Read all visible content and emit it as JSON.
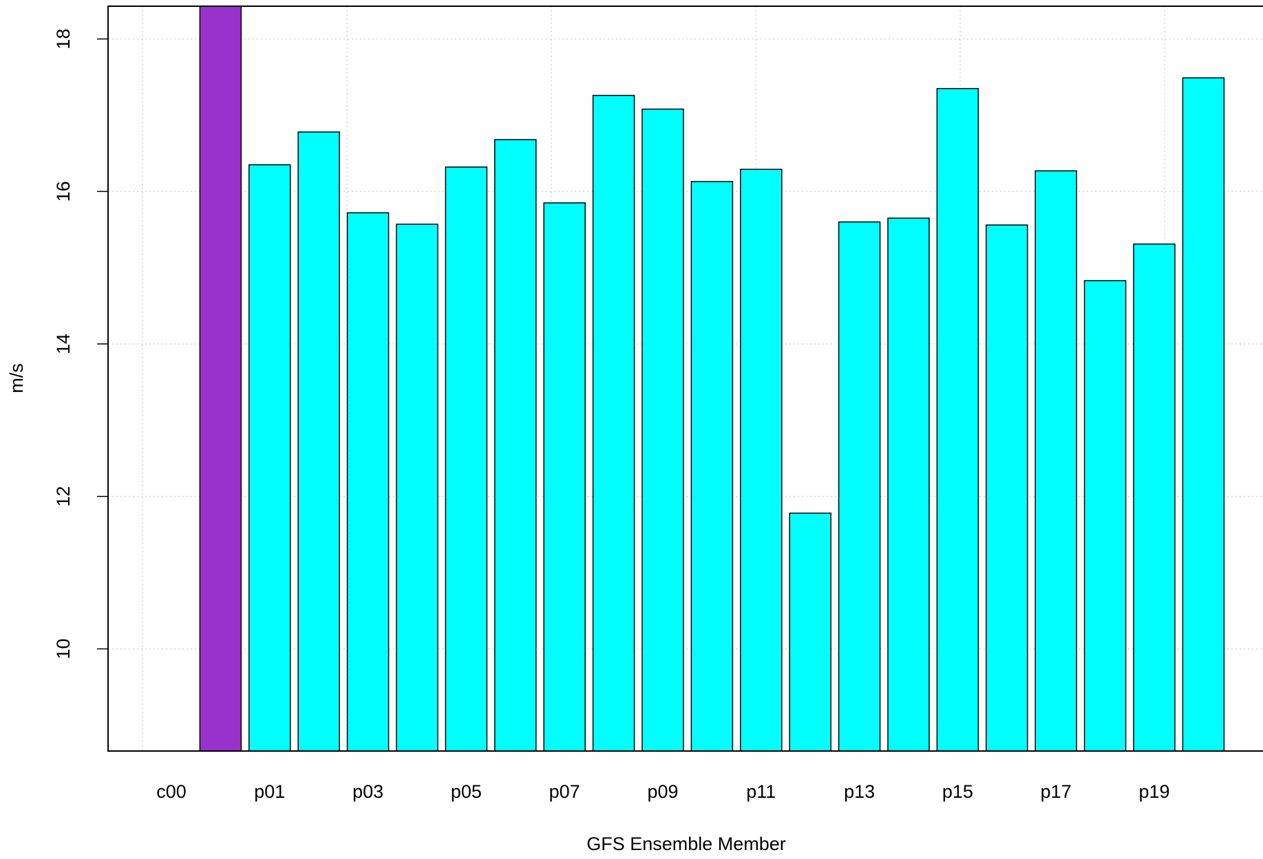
{
  "chart_data": {
    "type": "bar",
    "x_label": "GFS Ensemble Member",
    "y_label": "m/s",
    "categories": [
      "c00",
      null,
      "p01",
      null,
      "p03",
      null,
      "p05",
      null,
      "p07",
      null,
      "p09",
      null,
      "p11",
      null,
      "p13",
      null,
      "p15",
      null,
      "p17",
      null,
      "p19",
      null
    ],
    "values": [
      null,
      19,
      16.35,
      16.78,
      15.72,
      15.57,
      16.32,
      16.68,
      15.85,
      17.26,
      17.08,
      16.13,
      16.29,
      11.78,
      15.6,
      15.65,
      17.35,
      15.56,
      16.27,
      14.83,
      15.31,
      17.49
    ],
    "colors": [
      "#00ffff",
      "#9932cc",
      "#00ffff",
      "#00ffff",
      "#00ffff",
      "#00ffff",
      "#00ffff",
      "#00ffff",
      "#00ffff",
      "#00ffff",
      "#00ffff",
      "#00ffff",
      "#00ffff",
      "#00ffff",
      "#00ffff",
      "#00ffff",
      "#00ffff",
      "#00ffff",
      "#00ffff",
      "#00ffff",
      "#00ffff",
      "#00ffff"
    ],
    "ylim": [
      8.66,
      18.43
    ],
    "yticks": [
      10,
      12,
      14,
      16,
      18
    ],
    "grid": true
  }
}
